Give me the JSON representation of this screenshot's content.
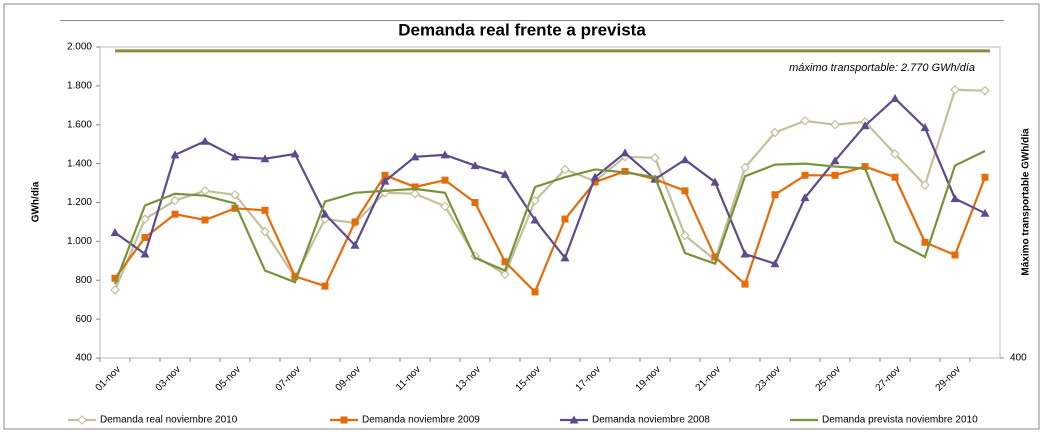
{
  "chart_data": {
    "type": "line",
    "title": "Demanda real frente a prevista",
    "y_label": "GWh/día",
    "y2_label": "Máximo transportable  GWh/día",
    "annotation": "máximo transportable: 2.770 GWh/día",
    "categories": [
      "01-nov",
      null,
      "03-nov",
      null,
      "05-nov",
      null,
      "07-nov",
      null,
      "09-nov",
      null,
      "11-nov",
      null,
      "13-nov",
      null,
      "15-nov",
      null,
      "17-nov",
      null,
      "19-nov",
      null,
      "21-nov",
      null,
      "23-nov",
      null,
      "25-nov",
      null,
      "27-nov",
      null,
      "29-nov",
      null
    ],
    "series": [
      {
        "name": "Demanda real noviembre 2010",
        "color": "#c4c09a",
        "marker": "diamond",
        "values": [
          750,
          1115,
          1210,
          1260,
          1240,
          1050,
          815,
          1115,
          1095,
          1250,
          1245,
          1180,
          925,
          830,
          1210,
          1370,
          1310,
          1435,
          1430,
          1030,
          905,
          1380,
          1560,
          1620,
          1600,
          1615,
          1450,
          1290,
          1780,
          1775
        ]
      },
      {
        "name": "Demanda noviembre 2009",
        "color": "#e46c0a",
        "marker": "square",
        "values": [
          810,
          1020,
          1140,
          1110,
          1170,
          1160,
          820,
          770,
          1100,
          1340,
          1280,
          1315,
          1200,
          895,
          740,
          1115,
          1305,
          1360,
          1320,
          1260,
          920,
          780,
          1240,
          1340,
          1340,
          1385,
          1330,
          995,
          930,
          1330
        ]
      },
      {
        "name": "Demanda noviembre 2008",
        "color": "#5f4b8b",
        "marker": "triangle",
        "values": [
          1045,
          935,
          1445,
          1515,
          1435,
          1425,
          1450,
          1140,
          980,
          1310,
          1435,
          1445,
          1390,
          1345,
          1110,
          915,
          1330,
          1455,
          1320,
          1420,
          1305,
          935,
          885,
          1225,
          1415,
          1595,
          1735,
          1585,
          1220,
          1145
        ]
      },
      {
        "name": "Demanda prevista noviembre 2010",
        "color": "#77933c",
        "marker": "none",
        "values": [
          780,
          1185,
          1245,
          1235,
          1195,
          850,
          790,
          1205,
          1250,
          1260,
          1270,
          1250,
          915,
          850,
          1280,
          1330,
          1370,
          1355,
          1330,
          940,
          885,
          1335,
          1395,
          1400,
          1385,
          1375,
          1000,
          920,
          1390,
          1465
        ]
      }
    ],
    "reference_line": {
      "value": 2770,
      "color": "#8c8a3c",
      "axis": "y2"
    },
    "ylim": [
      400,
      2000
    ],
    "yticks": [
      400,
      600,
      800,
      {
        "value": 1000,
        "label": "1.000"
      },
      {
        "value": 1200,
        "label": "1.200"
      },
      {
        "value": 1400,
        "label": "1.400"
      },
      {
        "value": 1600,
        "label": "1.600"
      },
      {
        "value": 1800,
        "label": "1.800"
      },
      {
        "value": 2000,
        "label": "2.000"
      }
    ],
    "y2lim": [
      400,
      2800
    ],
    "y2ticks": [
      400
    ],
    "legend": "bottom"
  }
}
